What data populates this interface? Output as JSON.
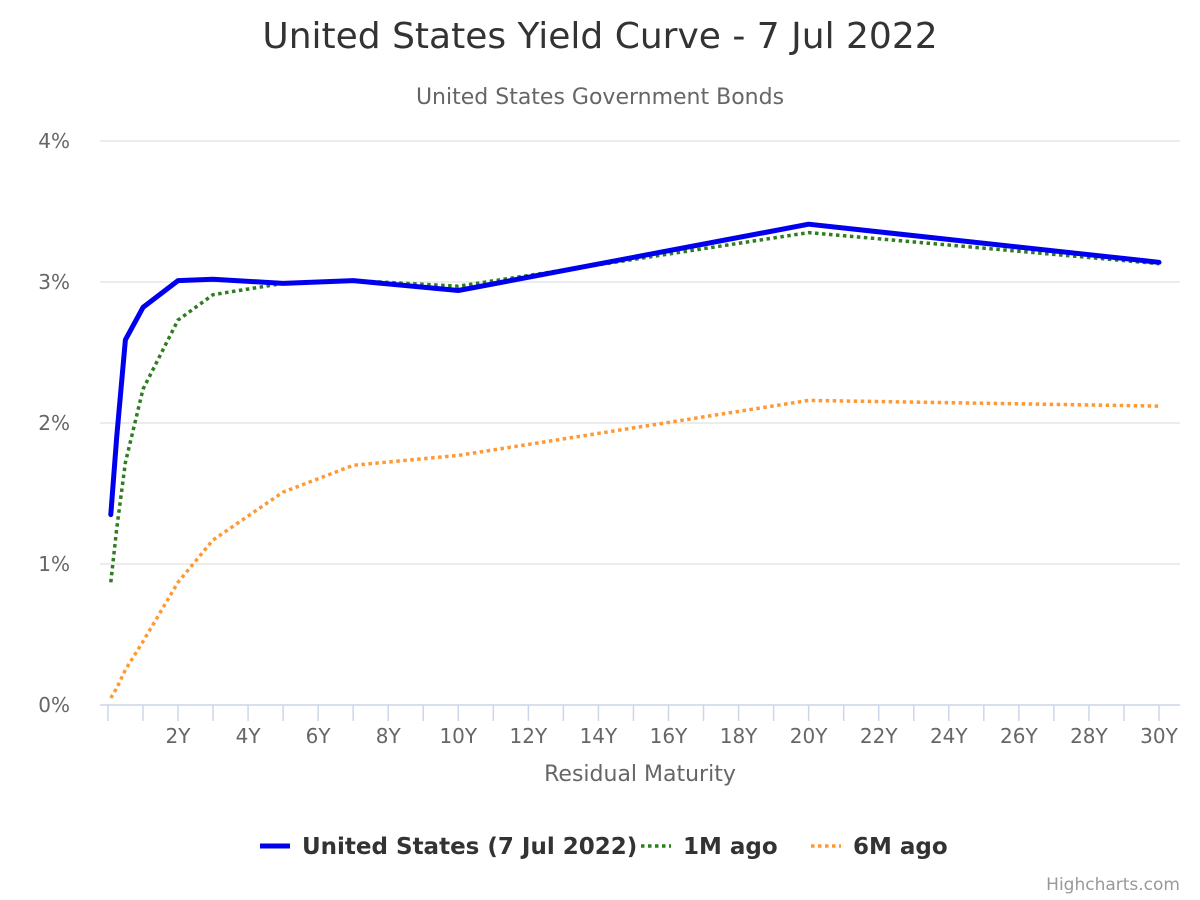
{
  "chart_data": {
    "type": "line",
    "title": "United States Yield Curve - 7 Jul 2022",
    "subtitle": "United States Government Bonds",
    "xlabel": "Residual Maturity",
    "ylabel": "",
    "x_ticks": [
      "2Y",
      "4Y",
      "6Y",
      "8Y",
      "10Y",
      "12Y",
      "14Y",
      "16Y",
      "18Y",
      "20Y",
      "22Y",
      "24Y",
      "26Y",
      "28Y",
      "30Y"
    ],
    "x_tick_values": [
      2,
      4,
      6,
      8,
      10,
      12,
      14,
      16,
      18,
      20,
      22,
      24,
      26,
      28,
      30
    ],
    "y_ticks": [
      "0%",
      "1%",
      "2%",
      "3%",
      "4%"
    ],
    "y_tick_values": [
      0,
      1,
      2,
      3,
      4
    ],
    "xlim": [
      0,
      30.3
    ],
    "ylim": [
      0,
      4
    ],
    "grid": true,
    "legend_position": "bottom",
    "series": [
      {
        "name": "United States (7 Jul 2022)",
        "color": "#0000ee",
        "style": "solid",
        "x": [
          0.083,
          0.25,
          0.5,
          1,
          2,
          3,
          5,
          7,
          10,
          20,
          30
        ],
        "y": [
          1.35,
          1.9,
          2.59,
          2.82,
          3.01,
          3.02,
          2.99,
          3.01,
          2.94,
          3.41,
          3.14
        ]
      },
      {
        "name": "1M ago",
        "color": "#2e7d1e",
        "style": "dotted",
        "x": [
          0.083,
          0.25,
          0.5,
          1,
          2,
          3,
          5,
          7,
          10,
          20,
          30
        ],
        "y": [
          0.87,
          1.25,
          1.72,
          2.24,
          2.73,
          2.91,
          2.99,
          3.01,
          2.97,
          3.35,
          3.13
        ]
      },
      {
        "name": "6M ago",
        "color": "#ff9933",
        "style": "dotted",
        "x": [
          0.083,
          0.25,
          0.5,
          1,
          2,
          3,
          5,
          7,
          10,
          20,
          30
        ],
        "y": [
          0.05,
          0.12,
          0.25,
          0.45,
          0.87,
          1.17,
          1.51,
          1.7,
          1.77,
          2.16,
          2.12
        ]
      }
    ]
  },
  "credits": "Highcharts.com"
}
